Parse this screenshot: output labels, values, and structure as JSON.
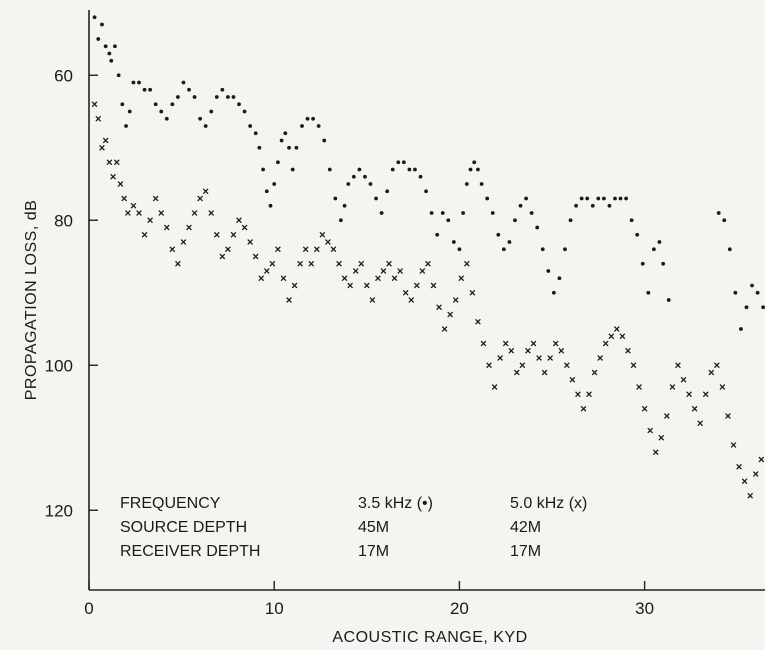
{
  "chart_data": {
    "type": "scatter",
    "title": "",
    "xlabel": "ACOUSTIC RANGE, KYD",
    "ylabel": "PROPAGATION LOSS, dB",
    "xlim": [
      0,
      36.5
    ],
    "ylim": [
      51,
      131
    ],
    "y_inverted": true,
    "grid": false,
    "x_ticks": [
      0,
      10,
      20,
      30
    ],
    "y_ticks": [
      60,
      80,
      100,
      120
    ],
    "legend_table": {
      "rows": [
        {
          "label": "FREQUENCY",
          "col1": "3.5 kHz (•)",
          "col2": "5.0 kHz (x)"
        },
        {
          "label": "SOURCE DEPTH",
          "col1": "45M",
          "col2": "42M"
        },
        {
          "label": "RECEIVER DEPTH",
          "col1": "17M",
          "col2": "17M"
        }
      ]
    },
    "series": [
      {
        "name": "3.5 kHz (•)",
        "marker": "dot",
        "points": [
          [
            0.3,
            52
          ],
          [
            0.5,
            55
          ],
          [
            0.7,
            53
          ],
          [
            0.9,
            56
          ],
          [
            1.1,
            57
          ],
          [
            1.2,
            58
          ],
          [
            1.4,
            56
          ],
          [
            1.6,
            60
          ],
          [
            1.8,
            64
          ],
          [
            2.0,
            67
          ],
          [
            2.2,
            65
          ],
          [
            2.4,
            61
          ],
          [
            2.7,
            61
          ],
          [
            3.0,
            62
          ],
          [
            3.3,
            62
          ],
          [
            3.6,
            64
          ],
          [
            3.9,
            65
          ],
          [
            4.2,
            66
          ],
          [
            4.5,
            64
          ],
          [
            4.8,
            63
          ],
          [
            5.1,
            61
          ],
          [
            5.4,
            62
          ],
          [
            5.7,
            63
          ],
          [
            6.0,
            66
          ],
          [
            6.3,
            67
          ],
          [
            6.6,
            65
          ],
          [
            6.9,
            63
          ],
          [
            7.2,
            62
          ],
          [
            7.5,
            63
          ],
          [
            7.8,
            63
          ],
          [
            8.1,
            64
          ],
          [
            8.4,
            65
          ],
          [
            8.7,
            67
          ],
          [
            9.0,
            68
          ],
          [
            9.2,
            70
          ],
          [
            9.4,
            73
          ],
          [
            9.6,
            76
          ],
          [
            9.8,
            78
          ],
          [
            10.0,
            75
          ],
          [
            10.2,
            72
          ],
          [
            10.4,
            69
          ],
          [
            10.6,
            68
          ],
          [
            10.8,
            70
          ],
          [
            11.0,
            73
          ],
          [
            11.2,
            70
          ],
          [
            11.5,
            67
          ],
          [
            11.8,
            66
          ],
          [
            12.1,
            66
          ],
          [
            12.4,
            67
          ],
          [
            12.7,
            69
          ],
          [
            13.0,
            73
          ],
          [
            13.3,
            77
          ],
          [
            13.6,
            80
          ],
          [
            13.8,
            78
          ],
          [
            14.0,
            75
          ],
          [
            14.3,
            74
          ],
          [
            14.6,
            73
          ],
          [
            14.9,
            74
          ],
          [
            15.2,
            75
          ],
          [
            15.5,
            77
          ],
          [
            15.8,
            79
          ],
          [
            16.1,
            76
          ],
          [
            16.4,
            73
          ],
          [
            16.7,
            72
          ],
          [
            17.0,
            72
          ],
          [
            17.3,
            73
          ],
          [
            17.6,
            73
          ],
          [
            17.9,
            74
          ],
          [
            18.2,
            76
          ],
          [
            18.5,
            79
          ],
          [
            18.8,
            82
          ],
          [
            19.1,
            79
          ],
          [
            19.4,
            80
          ],
          [
            19.7,
            83
          ],
          [
            20.0,
            84
          ],
          [
            20.2,
            79
          ],
          [
            20.4,
            75
          ],
          [
            20.6,
            73
          ],
          [
            20.8,
            72
          ],
          [
            21.0,
            73
          ],
          [
            21.2,
            75
          ],
          [
            21.5,
            77
          ],
          [
            21.8,
            79
          ],
          [
            22.1,
            82
          ],
          [
            22.4,
            84
          ],
          [
            22.7,
            83
          ],
          [
            23.0,
            80
          ],
          [
            23.3,
            78
          ],
          [
            23.6,
            77
          ],
          [
            23.9,
            79
          ],
          [
            24.2,
            81
          ],
          [
            24.5,
            84
          ],
          [
            24.8,
            87
          ],
          [
            25.1,
            90
          ],
          [
            25.4,
            88
          ],
          [
            25.7,
            84
          ],
          [
            26.0,
            80
          ],
          [
            26.3,
            78
          ],
          [
            26.6,
            77
          ],
          [
            26.9,
            77
          ],
          [
            27.2,
            78
          ],
          [
            27.5,
            77
          ],
          [
            27.8,
            77
          ],
          [
            28.1,
            78
          ],
          [
            28.4,
            77
          ],
          [
            28.7,
            77
          ],
          [
            29.0,
            77
          ],
          [
            29.3,
            80
          ],
          [
            29.6,
            82
          ],
          [
            29.9,
            86
          ],
          [
            30.2,
            90
          ],
          [
            30.5,
            84
          ],
          [
            30.8,
            83
          ],
          [
            31.0,
            86
          ],
          [
            31.3,
            91
          ],
          [
            34.0,
            79
          ],
          [
            34.3,
            80
          ],
          [
            34.6,
            84
          ],
          [
            34.9,
            90
          ],
          [
            35.2,
            95
          ],
          [
            35.5,
            92
          ],
          [
            35.8,
            89
          ],
          [
            36.1,
            90
          ],
          [
            36.4,
            92
          ]
        ]
      },
      {
        "name": "5.0 kHz (x)",
        "marker": "x",
        "points": [
          [
            0.3,
            64
          ],
          [
            0.5,
            66
          ],
          [
            0.7,
            70
          ],
          [
            0.9,
            69
          ],
          [
            1.1,
            72
          ],
          [
            1.3,
            74
          ],
          [
            1.5,
            72
          ],
          [
            1.7,
            75
          ],
          [
            1.9,
            77
          ],
          [
            2.1,
            79
          ],
          [
            2.4,
            78
          ],
          [
            2.7,
            79
          ],
          [
            3.0,
            82
          ],
          [
            3.3,
            80
          ],
          [
            3.6,
            77
          ],
          [
            3.9,
            79
          ],
          [
            4.2,
            81
          ],
          [
            4.5,
            84
          ],
          [
            4.8,
            86
          ],
          [
            5.1,
            83
          ],
          [
            5.4,
            81
          ],
          [
            5.7,
            79
          ],
          [
            6.0,
            77
          ],
          [
            6.3,
            76
          ],
          [
            6.6,
            79
          ],
          [
            6.9,
            82
          ],
          [
            7.2,
            85
          ],
          [
            7.5,
            84
          ],
          [
            7.8,
            82
          ],
          [
            8.1,
            80
          ],
          [
            8.4,
            81
          ],
          [
            8.7,
            83
          ],
          [
            9.0,
            85
          ],
          [
            9.3,
            88
          ],
          [
            9.6,
            87
          ],
          [
            9.9,
            86
          ],
          [
            10.2,
            84
          ],
          [
            10.5,
            88
          ],
          [
            10.8,
            91
          ],
          [
            11.1,
            89
          ],
          [
            11.4,
            86
          ],
          [
            11.7,
            84
          ],
          [
            12.0,
            86
          ],
          [
            12.3,
            84
          ],
          [
            12.6,
            82
          ],
          [
            12.9,
            83
          ],
          [
            13.2,
            84
          ],
          [
            13.5,
            86
          ],
          [
            13.8,
            88
          ],
          [
            14.1,
            89
          ],
          [
            14.4,
            87
          ],
          [
            14.7,
            86
          ],
          [
            15.0,
            89
          ],
          [
            15.3,
            91
          ],
          [
            15.6,
            88
          ],
          [
            15.9,
            87
          ],
          [
            16.2,
            86
          ],
          [
            16.5,
            88
          ],
          [
            16.8,
            87
          ],
          [
            17.1,
            90
          ],
          [
            17.4,
            91
          ],
          [
            17.7,
            89
          ],
          [
            18.0,
            87
          ],
          [
            18.3,
            86
          ],
          [
            18.6,
            89
          ],
          [
            18.9,
            92
          ],
          [
            19.2,
            95
          ],
          [
            19.5,
            93
          ],
          [
            19.8,
            91
          ],
          [
            20.1,
            88
          ],
          [
            20.4,
            86
          ],
          [
            20.7,
            90
          ],
          [
            21.0,
            94
          ],
          [
            21.3,
            97
          ],
          [
            21.6,
            100
          ],
          [
            21.9,
            103
          ],
          [
            22.2,
            99
          ],
          [
            22.5,
            97
          ],
          [
            22.8,
            98
          ],
          [
            23.1,
            101
          ],
          [
            23.4,
            100
          ],
          [
            23.7,
            98
          ],
          [
            24.0,
            97
          ],
          [
            24.3,
            99
          ],
          [
            24.6,
            101
          ],
          [
            24.9,
            99
          ],
          [
            25.2,
            97
          ],
          [
            25.5,
            98
          ],
          [
            25.8,
            100
          ],
          [
            26.1,
            102
          ],
          [
            26.4,
            104
          ],
          [
            26.7,
            106
          ],
          [
            27.0,
            104
          ],
          [
            27.3,
            101
          ],
          [
            27.6,
            99
          ],
          [
            27.9,
            97
          ],
          [
            28.2,
            96
          ],
          [
            28.5,
            95
          ],
          [
            28.8,
            96
          ],
          [
            29.1,
            98
          ],
          [
            29.4,
            100
          ],
          [
            29.7,
            103
          ],
          [
            30.0,
            106
          ],
          [
            30.3,
            109
          ],
          [
            30.6,
            112
          ],
          [
            30.9,
            110
          ],
          [
            31.2,
            107
          ],
          [
            31.5,
            103
          ],
          [
            31.8,
            100
          ],
          [
            32.1,
            102
          ],
          [
            32.4,
            104
          ],
          [
            32.7,
            106
          ],
          [
            33.0,
            108
          ],
          [
            33.3,
            104
          ],
          [
            33.6,
            101
          ],
          [
            33.9,
            100
          ],
          [
            34.2,
            103
          ],
          [
            34.5,
            107
          ],
          [
            34.8,
            111
          ],
          [
            35.1,
            114
          ],
          [
            35.4,
            116
          ],
          [
            35.7,
            118
          ],
          [
            36.0,
            115
          ],
          [
            36.3,
            113
          ]
        ]
      }
    ]
  }
}
